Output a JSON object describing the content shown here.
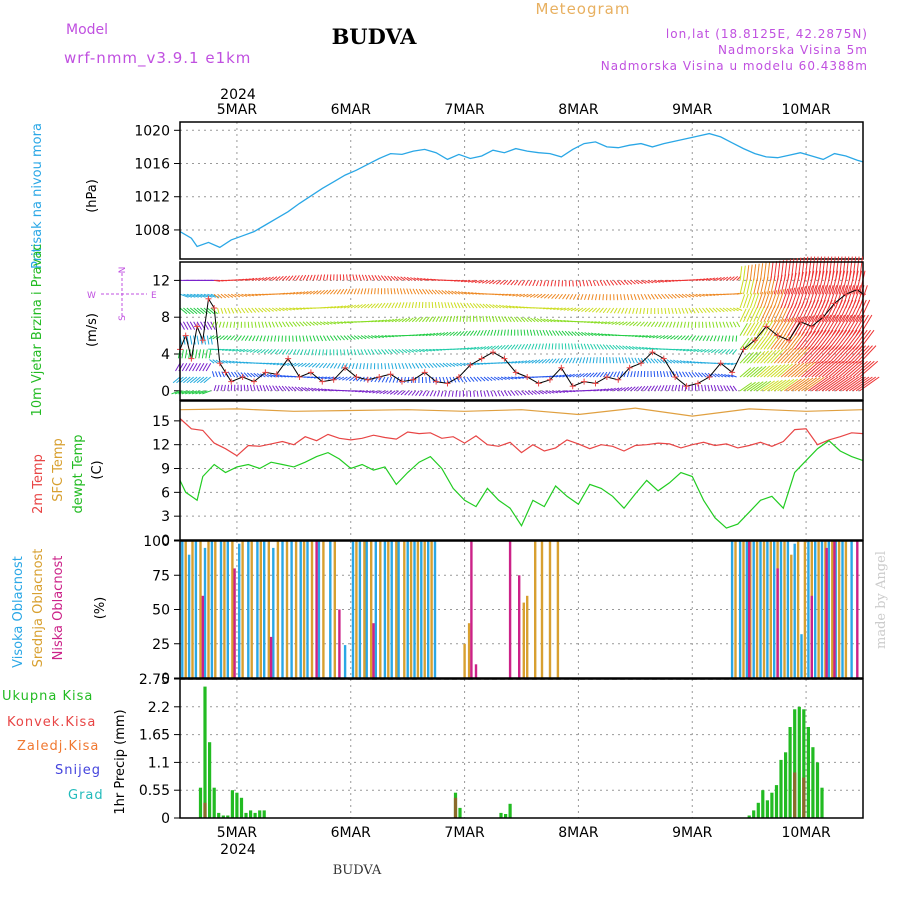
{
  "header": {
    "model_label": "Model",
    "model_name": "wrf-nmm_v3.9.1 e1km",
    "station": "BUDVA",
    "product": "Meteogram",
    "coords": "lon,lat (18.8125E, 42.2875N)",
    "elevation": "Nadmorska Visina 5m",
    "model_elevation": "Nadmorska Visina u modelu 60.4388m"
  },
  "footer": {
    "station": "BUDVA",
    "credit": "made by Angel"
  },
  "time_axis": {
    "year": "2024",
    "labels": [
      "5MAR",
      "6MAR",
      "7MAR",
      "8MAR",
      "9MAR",
      "10MAR"
    ],
    "days": [
      1,
      2,
      3,
      4,
      5,
      6
    ],
    "start": 0.5,
    "end": 6.5
  },
  "colors": {
    "pressure": "#2aa7e6",
    "temp": "#e84545",
    "sfc": "#e0a040",
    "dewpt": "#22cc22",
    "high_cloud": "#2aa7e6",
    "mid_cloud": "#d8a030",
    "low_cloud": "#cc2288",
    "total_precip": "#22bb22",
    "conv_precip": "#e84545",
    "freezing": "#f07830",
    "snow": "#4444dd",
    "hail": "#22bbbb",
    "magenta": "#c050e0",
    "orange": "#f0a030"
  },
  "chart_data": [
    {
      "type": "line",
      "panel": "pressure",
      "ylabel": "Pritisak na nivou mora",
      "unit": "(hPa)",
      "yticks": [
        1008,
        1012,
        1016,
        1020
      ],
      "ylim": [
        1004.5,
        1021
      ],
      "grid": true,
      "series": [
        {
          "name": "Pritisak na nivou mora",
          "x": [
            0.5,
            0.6,
            0.65,
            0.75,
            0.85,
            0.95,
            1.05,
            1.15,
            1.25,
            1.35,
            1.45,
            1.55,
            1.65,
            1.75,
            1.85,
            1.95,
            2.05,
            2.15,
            2.25,
            2.35,
            2.45,
            2.55,
            2.65,
            2.75,
            2.85,
            2.95,
            3.05,
            3.15,
            3.25,
            3.35,
            3.45,
            3.55,
            3.65,
            3.75,
            3.85,
            3.95,
            4.05,
            4.15,
            4.25,
            4.35,
            4.45,
            4.55,
            4.65,
            4.75,
            4.85,
            4.95,
            5.05,
            5.15,
            5.25,
            5.35,
            5.45,
            5.55,
            5.65,
            5.75,
            5.85,
            5.95,
            6.05,
            6.15,
            6.25,
            6.35,
            6.45,
            6.5
          ],
          "y": [
            1007.8,
            1007.0,
            1006.0,
            1006.5,
            1005.9,
            1006.8,
            1007.3,
            1007.8,
            1008.6,
            1009.4,
            1010.2,
            1011.2,
            1012.1,
            1013.0,
            1013.8,
            1014.6,
            1015.2,
            1015.9,
            1016.6,
            1017.2,
            1017.1,
            1017.5,
            1017.7,
            1017.3,
            1016.5,
            1017.1,
            1016.6,
            1016.9,
            1017.6,
            1017.3,
            1017.8,
            1017.5,
            1017.3,
            1017.2,
            1016.8,
            1017.7,
            1018.4,
            1018.6,
            1018.0,
            1017.9,
            1018.2,
            1018.4,
            1018.0,
            1018.4,
            1018.7,
            1019.0,
            1019.3,
            1019.6,
            1019.2,
            1018.5,
            1017.8,
            1017.2,
            1016.8,
            1016.7,
            1017.0,
            1017.3,
            1016.9,
            1016.5,
            1017.2,
            1016.9,
            1016.4,
            1016.2
          ]
        }
      ]
    },
    {
      "type": "line",
      "panel": "wind",
      "ylabel": "10m Vjetar Brzina i Pravac",
      "unit": "(m/s)",
      "compass": {
        "n": "N",
        "s": "S",
        "e": "E",
        "w": "W"
      },
      "yticks": [
        0,
        4,
        8,
        12
      ],
      "ylim": [
        -1,
        14
      ],
      "grid": true,
      "series": [
        {
          "name": "Brzina",
          "x": [
            0.5,
            0.55,
            0.6,
            0.65,
            0.7,
            0.75,
            0.8,
            0.85,
            0.9,
            0.95,
            1.05,
            1.15,
            1.25,
            1.35,
            1.45,
            1.55,
            1.65,
            1.75,
            1.85,
            1.95,
            2.05,
            2.15,
            2.25,
            2.35,
            2.45,
            2.55,
            2.65,
            2.75,
            2.85,
            2.95,
            3.05,
            3.15,
            3.25,
            3.35,
            3.45,
            3.55,
            3.65,
            3.75,
            3.85,
            3.95,
            4.05,
            4.15,
            4.25,
            4.35,
            4.45,
            4.55,
            4.65,
            4.75,
            4.85,
            4.95,
            5.05,
            5.15,
            5.25,
            5.35,
            5.45,
            5.55,
            5.65,
            5.75,
            5.85,
            5.95,
            6.05,
            6.15,
            6.25,
            6.35,
            6.45,
            6.5
          ],
          "y": [
            4.5,
            6,
            3.5,
            7,
            5.5,
            10,
            9,
            3,
            2,
            1,
            1.5,
            1,
            2,
            1.8,
            3.5,
            1.5,
            2,
            1,
            1.2,
            2.5,
            1.5,
            1.2,
            1.5,
            1.8,
            1,
            1.2,
            2,
            1,
            0.8,
            1.5,
            2.8,
            3.5,
            4.2,
            3.5,
            2,
            1.5,
            0.8,
            1.2,
            2.5,
            0.5,
            1,
            0.8,
            1.5,
            1.2,
            2.5,
            3,
            4.2,
            3.5,
            1.5,
            0.5,
            0.8,
            1.5,
            3,
            2,
            4.5,
            5.5,
            7,
            6,
            5.5,
            7.5,
            7,
            8,
            9.5,
            10.5,
            11,
            10.5
          ]
        }
      ]
    },
    {
      "type": "line",
      "panel": "temperature",
      "ylabel_parts": [
        "2m Temp",
        "SFC Temp",
        "dewpt Temp"
      ],
      "unit": "(C)",
      "yticks": [
        0,
        3,
        6,
        9,
        12,
        15
      ],
      "ylim": [
        0,
        17.5
      ],
      "grid": true,
      "series": [
        {
          "name": "SFC Temp",
          "x": [
            0.5,
            1.0,
            1.5,
            2.0,
            2.5,
            3.0,
            3.5,
            4.0,
            4.5,
            5.0,
            5.5,
            6.0,
            6.5
          ],
          "y": [
            16.4,
            16.5,
            16.2,
            16.3,
            16.4,
            16.2,
            16.4,
            15.8,
            16.6,
            15.6,
            16.5,
            16.2,
            16.4
          ]
        },
        {
          "name": "2m Temp",
          "x": [
            0.5,
            0.6,
            0.7,
            0.8,
            0.9,
            1.0,
            1.1,
            1.2,
            1.3,
            1.4,
            1.5,
            1.6,
            1.7,
            1.8,
            1.9,
            2.0,
            2.1,
            2.2,
            2.3,
            2.4,
            2.5,
            2.6,
            2.7,
            2.8,
            2.9,
            3.0,
            3.1,
            3.2,
            3.3,
            3.4,
            3.5,
            3.6,
            3.7,
            3.8,
            3.9,
            4.0,
            4.1,
            4.2,
            4.3,
            4.4,
            4.5,
            4.6,
            4.7,
            4.8,
            4.9,
            5.0,
            5.1,
            5.2,
            5.3,
            5.4,
            5.5,
            5.6,
            5.7,
            5.8,
            5.9,
            6.0,
            6.1,
            6.2,
            6.3,
            6.4,
            6.5
          ],
          "y": [
            15.3,
            14.0,
            13.8,
            12.2,
            11.5,
            10.6,
            11.9,
            11.8,
            12.1,
            12.4,
            12.0,
            13.0,
            12.5,
            13.3,
            12.8,
            12.6,
            12.8,
            13.2,
            12.9,
            12.7,
            13.6,
            13.4,
            13.5,
            12.8,
            13.0,
            12.2,
            13.1,
            12.0,
            11.8,
            12.3,
            11.0,
            12.0,
            11.2,
            11.6,
            12.6,
            12.1,
            11.5,
            12.0,
            11.8,
            11.2,
            11.9,
            12.0,
            12.2,
            12.1,
            11.6,
            12.0,
            12.3,
            11.9,
            12.1,
            11.6,
            11.9,
            12.3,
            11.8,
            12.4,
            13.9,
            14.0,
            12.0,
            12.6,
            13.0,
            13.5,
            13.4
          ]
        },
        {
          "name": "dewpt Temp",
          "x": [
            0.5,
            0.55,
            0.6,
            0.65,
            0.7,
            0.8,
            0.9,
            1.0,
            1.1,
            1.2,
            1.3,
            1.4,
            1.5,
            1.6,
            1.7,
            1.8,
            1.9,
            2.0,
            2.1,
            2.2,
            2.3,
            2.4,
            2.5,
            2.6,
            2.7,
            2.8,
            2.9,
            3.0,
            3.1,
            3.2,
            3.3,
            3.4,
            3.5,
            3.6,
            3.7,
            3.8,
            3.9,
            4.0,
            4.1,
            4.2,
            4.3,
            4.4,
            4.5,
            4.6,
            4.7,
            4.8,
            4.9,
            5.0,
            5.1,
            5.2,
            5.3,
            5.4,
            5.5,
            5.6,
            5.7,
            5.8,
            5.9,
            6.0,
            6.1,
            6.2,
            6.3,
            6.4,
            6.5
          ],
          "y": [
            7.5,
            6.0,
            5.5,
            5.0,
            8.0,
            9.5,
            8.5,
            9.2,
            9.5,
            9.0,
            9.8,
            9.5,
            9.2,
            9.8,
            10.5,
            11.0,
            10.2,
            9.0,
            9.5,
            8.8,
            9.2,
            7.0,
            8.5,
            9.8,
            10.5,
            9.0,
            6.5,
            5.0,
            4.2,
            6.5,
            5.0,
            4.0,
            1.8,
            5.0,
            4.2,
            6.8,
            5.5,
            4.5,
            7.0,
            6.5,
            5.5,
            4.0,
            5.8,
            7.5,
            6.2,
            7.2,
            8.5,
            8.0,
            5.0,
            2.8,
            1.5,
            2.0,
            3.5,
            5.0,
            5.5,
            4.0,
            8.5,
            10.0,
            11.5,
            12.5,
            11.2,
            10.5,
            10.0
          ]
        }
      ]
    },
    {
      "type": "bar",
      "panel": "cloud",
      "ylabel_parts": [
        "Visoka Oblacnost",
        "Srednja Oblacnost",
        "Niska Oblacnost"
      ],
      "unit": "(%)",
      "yticks": [
        0,
        25,
        50,
        75,
        100
      ],
      "ylim": [
        0,
        100
      ],
      "grid": true,
      "series": [
        {
          "name": "Visoka Oblacnost",
          "x": [
            0.52,
            0.58,
            0.64,
            0.72,
            0.78,
            0.86,
            0.92,
            1.02,
            1.1,
            1.18,
            1.24,
            1.32,
            1.4,
            1.48,
            1.56,
            1.62,
            1.72,
            1.82,
            1.95,
            2.02,
            2.08,
            2.14,
            2.22,
            2.3,
            2.36,
            2.42,
            2.5,
            2.56,
            2.62,
            2.68,
            2.74,
            5.35,
            5.42,
            5.48,
            5.54,
            5.6,
            5.66,
            5.72,
            5.78,
            5.84,
            5.9,
            5.96,
            6.02,
            6.08,
            6.14,
            6.2,
            6.26,
            6.32,
            6.4
          ],
          "y": [
            100,
            90,
            100,
            95,
            100,
            100,
            100,
            98,
            100,
            100,
            100,
            95,
            100,
            100,
            100,
            100,
            100,
            100,
            24,
            100,
            100,
            100,
            100,
            100,
            100,
            100,
            100,
            100,
            100,
            100,
            100,
            100,
            100,
            100,
            100,
            100,
            100,
            100,
            100,
            100,
            98,
            32,
            100,
            100,
            100,
            100,
            100,
            100,
            100
          ]
        },
        {
          "name": "Srednja Oblacnost",
          "x": [
            0.55,
            0.61,
            0.68,
            0.75,
            0.81,
            0.89,
            0.96,
            1.05,
            1.13,
            1.21,
            1.28,
            1.36,
            1.44,
            1.52,
            1.59,
            1.66,
            1.76,
            1.86,
            2.05,
            2.12,
            2.18,
            2.26,
            2.33,
            2.4,
            2.47,
            2.53,
            2.59,
            2.65,
            2.71,
            3.0,
            3.04,
            3.52,
            3.55,
            3.62,
            3.68,
            3.75,
            3.82,
            5.38,
            5.45,
            5.51,
            5.57,
            5.63,
            5.69,
            5.75,
            5.81,
            5.87,
            5.93,
            5.99,
            6.05,
            6.11,
            6.17,
            6.23,
            6.29,
            6.35
          ],
          "y": [
            100,
            100,
            100,
            100,
            100,
            100,
            100,
            100,
            100,
            100,
            100,
            100,
            100,
            100,
            100,
            100,
            100,
            100,
            100,
            100,
            100,
            100,
            100,
            100,
            100,
            100,
            100,
            100,
            100,
            25,
            40,
            55,
            60,
            100,
            100,
            100,
            100,
            100,
            100,
            100,
            100,
            100,
            100,
            100,
            100,
            90,
            100,
            100,
            100,
            100,
            100,
            100,
            100,
            100
          ]
        },
        {
          "name": "Niska Oblacnost",
          "x": [
            0.7,
            0.98,
            1.3,
            1.7,
            1.9,
            2.2,
            3.06,
            3.1,
            3.4,
            3.48,
            5.5,
            5.75,
            6.05,
            6.18,
            6.25,
            6.45
          ],
          "y": [
            60,
            80,
            30,
            100,
            50,
            40,
            100,
            10,
            100,
            75,
            100,
            80,
            60,
            95,
            100,
            100
          ]
        }
      ]
    },
    {
      "type": "bar",
      "panel": "precip",
      "unit": "1hr Precip (mm)",
      "legend": [
        "Ukupna Kisa",
        "Konvek.Kisa",
        "Zaledj.Kisa",
        "Snijeg",
        "Grad"
      ],
      "yticks": [
        0,
        0.55,
        1.1,
        1.65,
        2.2,
        2.75
      ],
      "ylim": [
        0,
        2.75
      ],
      "grid": true,
      "series": [
        {
          "name": "Ukupna Kisa",
          "x": [
            0.68,
            0.72,
            0.76,
            0.8,
            0.84,
            0.88,
            0.92,
            0.96,
            1.0,
            1.04,
            1.08,
            1.12,
            1.16,
            1.2,
            1.24,
            2.92,
            2.96,
            3.32,
            3.36,
            3.4,
            5.5,
            5.54,
            5.58,
            5.62,
            5.66,
            5.7,
            5.74,
            5.78,
            5.82,
            5.86,
            5.9,
            5.94,
            5.98,
            6.02,
            6.06,
            6.1,
            6.14
          ],
          "y": [
            0.6,
            2.6,
            1.5,
            0.6,
            0.1,
            0.05,
            0.05,
            0.55,
            0.5,
            0.4,
            0.1,
            0.15,
            0.1,
            0.15,
            0.15,
            0.5,
            0.2,
            0.1,
            0.08,
            0.28,
            0.05,
            0.15,
            0.3,
            0.55,
            0.35,
            0.5,
            0.65,
            1.15,
            1.3,
            1.8,
            2.15,
            2.2,
            2.15,
            1.8,
            1.4,
            1.1,
            0.6
          ]
        },
        {
          "name": "Konvek.Kisa",
          "x": [
            0.72,
            2.92,
            5.9,
            5.98
          ],
          "y": [
            0.3,
            0.4,
            0.9,
            0.8
          ]
        }
      ]
    }
  ]
}
